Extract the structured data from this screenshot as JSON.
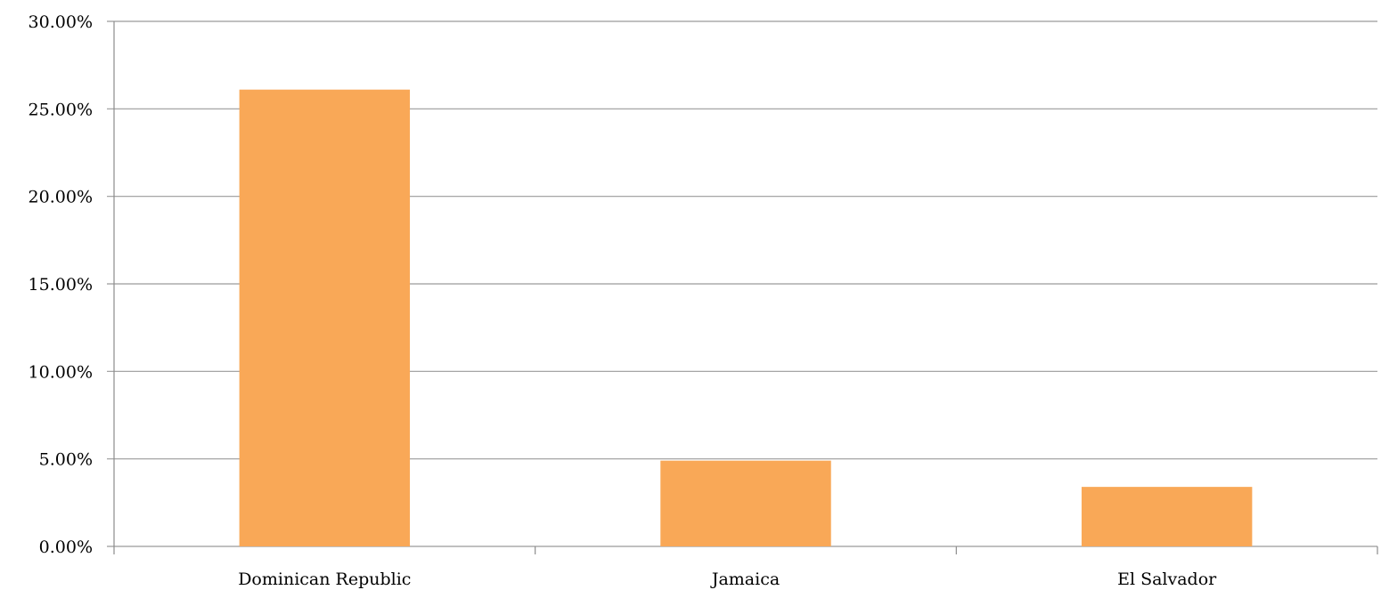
{
  "chart_data": {
    "type": "bar",
    "categories": [
      "Dominican Republic",
      "Jamaica",
      "El Salvador"
    ],
    "values": [
      26.1,
      4.9,
      3.4
    ],
    "value_format": "percent",
    "title": "",
    "xlabel": "",
    "ylabel": "",
    "ylim": [
      0,
      30
    ],
    "yticks": [
      "0.00%",
      "5.00%",
      "10.00%",
      "15.00%",
      "20.00%",
      "25.00%",
      "30.00%"
    ],
    "grid": "horizontal",
    "legend": "none",
    "colors": {
      "bar": "#F9A857",
      "grid": "#9a9a9a",
      "axis": "#8c8c8c"
    }
  }
}
